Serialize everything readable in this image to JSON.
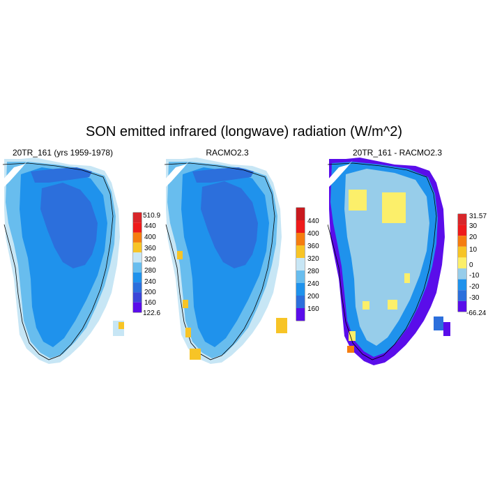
{
  "title": "SON emitted infrared (longwave) radiation (W/m^2)",
  "panels": [
    {
      "title": "20TR_161 (yrs 1959-1978)",
      "colorbar": {
        "labels": [
          "510.9",
          "440",
          "400",
          "360",
          "320",
          "280",
          "240",
          "200",
          "160",
          "122.6"
        ],
        "colors": [
          "#d8262a",
          "#ee1b1b",
          "#f57d10",
          "#f7c426",
          "#c7e6f5",
          "#68bdee",
          "#1f92ec",
          "#2c6fdc",
          "#3b46d8",
          "#5a0dea"
        ]
      }
    },
    {
      "title": "RACMO2.3",
      "colorbar": {
        "labels": [
          "440",
          "400",
          "360",
          "320",
          "280",
          "240",
          "200",
          "160"
        ],
        "colors": [
          "#c8191e",
          "#ee1b1b",
          "#f57d10",
          "#f7c426",
          "#c7e6f5",
          "#68bdee",
          "#1f92ec",
          "#2c6fdc",
          "#5a0dea"
        ]
      }
    },
    {
      "title": "20TR_161 - RACMO2.3",
      "colorbar": {
        "labels": [
          "31.57",
          "30",
          "20",
          "10",
          "0",
          "-10",
          "-20",
          "-30",
          "-66.24"
        ],
        "colors": [
          "#d8262a",
          "#ee1b1b",
          "#f57d10",
          "#f7c426",
          "#fcef6a",
          "#97cdea",
          "#1f92ec",
          "#2c6fdc",
          "#5a0dea"
        ]
      }
    }
  ]
}
